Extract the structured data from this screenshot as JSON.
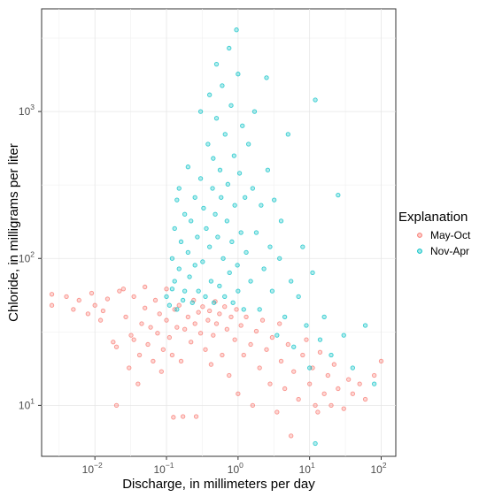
{
  "chart_data": {
    "type": "scatter",
    "xlabel": "Discharge, in millimeters per day",
    "ylabel": "Chloride, in milligrams per liter",
    "x_scale": "log10",
    "y_scale": "log10",
    "xlim": [
      0.0018,
      160
    ],
    "ylim": [
      4.5,
      5000
    ],
    "grid": true,
    "x_tick_exponents": [
      -2,
      -1,
      0,
      1,
      2
    ],
    "y_tick_exponents": [
      1,
      2,
      3
    ],
    "legend": {
      "title": "Explanation",
      "position": "right"
    },
    "series": [
      {
        "name": "May-Oct",
        "color": "#F8766D",
        "points": [
          [
            0.0025,
            57
          ],
          [
            0.0025,
            48
          ],
          [
            0.004,
            55
          ],
          [
            0.005,
            45
          ],
          [
            0.006,
            52
          ],
          [
            0.008,
            42
          ],
          [
            0.009,
            58
          ],
          [
            0.01,
            48
          ],
          [
            0.012,
            38
          ],
          [
            0.013,
            44
          ],
          [
            0.015,
            53
          ],
          [
            0.018,
            27
          ],
          [
            0.02,
            25
          ],
          [
            0.02,
            10
          ],
          [
            0.022,
            60
          ],
          [
            0.025,
            62
          ],
          [
            0.027,
            40
          ],
          [
            0.03,
            18
          ],
          [
            0.032,
            30
          ],
          [
            0.035,
            55
          ],
          [
            0.035,
            28
          ],
          [
            0.04,
            14
          ],
          [
            0.042,
            22
          ],
          [
            0.045,
            36
          ],
          [
            0.05,
            64
          ],
          [
            0.05,
            46
          ],
          [
            0.055,
            26
          ],
          [
            0.06,
            34
          ],
          [
            0.065,
            20
          ],
          [
            0.07,
            52
          ],
          [
            0.075,
            31
          ],
          [
            0.08,
            42
          ],
          [
            0.085,
            17
          ],
          [
            0.09,
            24
          ],
          [
            0.1,
            38
          ],
          [
            0.1,
            62
          ],
          [
            0.11,
            29
          ],
          [
            0.12,
            22
          ],
          [
            0.125,
            8.3
          ],
          [
            0.13,
            45
          ],
          [
            0.14,
            34
          ],
          [
            0.15,
            48
          ],
          [
            0.16,
            20
          ],
          [
            0.17,
            8.4
          ],
          [
            0.18,
            33
          ],
          [
            0.2,
            40
          ],
          [
            0.22,
            27
          ],
          [
            0.24,
            52
          ],
          [
            0.25,
            36
          ],
          [
            0.26,
            8.4
          ],
          [
            0.28,
            43
          ],
          [
            0.3,
            31
          ],
          [
            0.32,
            47
          ],
          [
            0.35,
            24
          ],
          [
            0.38,
            38
          ],
          [
            0.4,
            44
          ],
          [
            0.42,
            19
          ],
          [
            0.45,
            30
          ],
          [
            0.48,
            51
          ],
          [
            0.5,
            36
          ],
          [
            0.55,
            42
          ],
          [
            0.6,
            22
          ],
          [
            0.65,
            47
          ],
          [
            0.7,
            33
          ],
          [
            0.75,
            16
          ],
          [
            0.8,
            40
          ],
          [
            0.9,
            28
          ],
          [
            0.95,
            45
          ],
          [
            1.0,
            12
          ],
          [
            1.1,
            35
          ],
          [
            1.2,
            22
          ],
          [
            1.3,
            40
          ],
          [
            1.5,
            26
          ],
          [
            1.6,
            10
          ],
          [
            1.8,
            32
          ],
          [
            2.0,
            18
          ],
          [
            2.2,
            38
          ],
          [
            2.5,
            24
          ],
          [
            2.8,
            14
          ],
          [
            3.0,
            29
          ],
          [
            3.5,
            9
          ],
          [
            3.8,
            36
          ],
          [
            4.0,
            20
          ],
          [
            4.5,
            13
          ],
          [
            5.0,
            26
          ],
          [
            5.5,
            6.2
          ],
          [
            6.0,
            17
          ],
          [
            7.0,
            11
          ],
          [
            8.0,
            22
          ],
          [
            9.0,
            28
          ],
          [
            10,
            14
          ],
          [
            11,
            18
          ],
          [
            12,
            10
          ],
          [
            13,
            9
          ],
          [
            14,
            23
          ],
          [
            16,
            12
          ],
          [
            18,
            16
          ],
          [
            20,
            10
          ],
          [
            22,
            19
          ],
          [
            25,
            13
          ],
          [
            30,
            9.5
          ],
          [
            35,
            15
          ],
          [
            40,
            12
          ],
          [
            50,
            14
          ],
          [
            60,
            11
          ],
          [
            80,
            16
          ],
          [
            100,
            20
          ]
        ]
      },
      {
        "name": "Nov-Apr",
        "color": "#00BFC4",
        "points": [
          [
            0.1,
            55
          ],
          [
            0.11,
            48
          ],
          [
            0.12,
            62
          ],
          [
            0.12,
            100
          ],
          [
            0.13,
            160
          ],
          [
            0.13,
            70
          ],
          [
            0.14,
            250
          ],
          [
            0.14,
            45
          ],
          [
            0.15,
            300
          ],
          [
            0.15,
            85
          ],
          [
            0.16,
            130
          ],
          [
            0.17,
            52
          ],
          [
            0.18,
            200
          ],
          [
            0.18,
            60
          ],
          [
            0.2,
            110
          ],
          [
            0.2,
            420
          ],
          [
            0.21,
            75
          ],
          [
            0.22,
            180
          ],
          [
            0.23,
            50
          ],
          [
            0.25,
            260
          ],
          [
            0.25,
            90
          ],
          [
            0.27,
            140
          ],
          [
            0.28,
            60
          ],
          [
            0.3,
            350
          ],
          [
            0.3,
            1000
          ],
          [
            0.32,
            95
          ],
          [
            0.33,
            220
          ],
          [
            0.35,
            55
          ],
          [
            0.36,
            160
          ],
          [
            0.38,
            600
          ],
          [
            0.4,
            120
          ],
          [
            0.4,
            1300
          ],
          [
            0.42,
            70
          ],
          [
            0.44,
            300
          ],
          [
            0.45,
            480
          ],
          [
            0.46,
            50
          ],
          [
            0.48,
            200
          ],
          [
            0.5,
            900
          ],
          [
            0.5,
            2100
          ],
          [
            0.52,
            140
          ],
          [
            0.55,
            65
          ],
          [
            0.56,
            400
          ],
          [
            0.58,
            260
          ],
          [
            0.6,
            1500
          ],
          [
            0.62,
            100
          ],
          [
            0.65,
            55
          ],
          [
            0.66,
            700
          ],
          [
            0.7,
            180
          ],
          [
            0.72,
            320
          ],
          [
            0.75,
            2700
          ],
          [
            0.76,
            80
          ],
          [
            0.8,
            1100
          ],
          [
            0.82,
            130
          ],
          [
            0.85,
            50
          ],
          [
            0.88,
            500
          ],
          [
            0.9,
            230
          ],
          [
            0.95,
            3600
          ],
          [
            0.98,
            90
          ],
          [
            1.0,
            1800
          ],
          [
            1.0,
            60
          ],
          [
            1.05,
            380
          ],
          [
            1.1,
            150
          ],
          [
            1.15,
            800
          ],
          [
            1.2,
            45
          ],
          [
            1.25,
            260
          ],
          [
            1.3,
            110
          ],
          [
            1.4,
            600
          ],
          [
            1.5,
            70
          ],
          [
            1.6,
            300
          ],
          [
            1.7,
            1000
          ],
          [
            1.8,
            150
          ],
          [
            2.0,
            45
          ],
          [
            2.1,
            230
          ],
          [
            2.3,
            85
          ],
          [
            2.5,
            1700
          ],
          [
            2.6,
            400
          ],
          [
            2.8,
            120
          ],
          [
            3.0,
            60
          ],
          [
            3.2,
            250
          ],
          [
            3.5,
            30
          ],
          [
            3.8,
            100
          ],
          [
            4.0,
            180
          ],
          [
            4.5,
            40
          ],
          [
            5.0,
            700
          ],
          [
            5.5,
            70
          ],
          [
            6.0,
            25
          ],
          [
            7.0,
            55
          ],
          [
            8.0,
            120
          ],
          [
            9.0,
            35
          ],
          [
            10,
            18
          ],
          [
            11,
            80
          ],
          [
            12,
            1200
          ],
          [
            12,
            5.5
          ],
          [
            14,
            28
          ],
          [
            16,
            40
          ],
          [
            20,
            22
          ],
          [
            25,
            270
          ],
          [
            30,
            30
          ],
          [
            40,
            18
          ],
          [
            60,
            35
          ],
          [
            80,
            14
          ]
        ]
      }
    ]
  }
}
